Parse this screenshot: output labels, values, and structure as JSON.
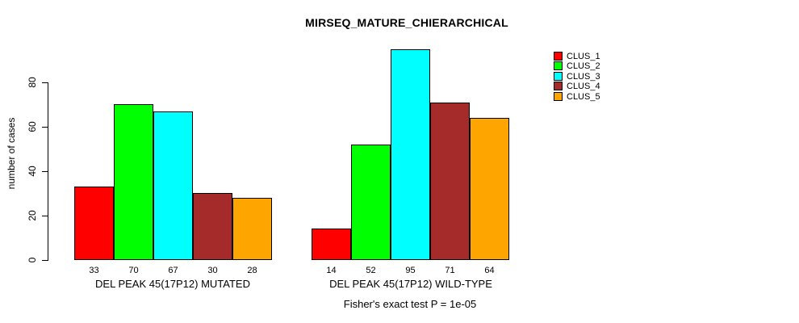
{
  "title": "MIRSEQ_MATURE_CHIERARCHICAL",
  "footer": {
    "annotation": "Fisher's exact test P = 1e-05"
  },
  "chart_data": {
    "type": "bar",
    "title": "MIRSEQ_MATURE_CHIERARCHICAL",
    "ylabel": "number of cases",
    "xlabel": "",
    "ylim": [
      0,
      100
    ],
    "yticks": [
      0,
      20,
      40,
      60,
      80
    ],
    "grid": false,
    "categories": [
      "CLUS_1",
      "CLUS_2",
      "CLUS_3",
      "CLUS_4",
      "CLUS_5"
    ],
    "colors": [
      "#FF0000",
      "#00FF00",
      "#00FFFF",
      "#A52A2A",
      "#FFA500"
    ],
    "groups": [
      {
        "label": "DEL PEAK 45(17P12) MUTATED",
        "values": [
          33,
          70,
          67,
          30,
          28
        ]
      },
      {
        "label": "DEL PEAK 45(17P12) WILD-TYPE",
        "values": [
          14,
          52,
          95,
          71,
          64
        ]
      }
    ],
    "legend": {
      "position": "right",
      "entries": [
        {
          "label": "CLUS_1",
          "color": "#FF0000"
        },
        {
          "label": "CLUS_2",
          "color": "#00FF00"
        },
        {
          "label": "CLUS_3",
          "color": "#00FFFF"
        },
        {
          "label": "CLUS_4",
          "color": "#A52A2A"
        },
        {
          "label": "CLUS_5",
          "color": "#FFA500"
        }
      ]
    },
    "annotation": "Fisher's exact test P = 1e-05"
  }
}
